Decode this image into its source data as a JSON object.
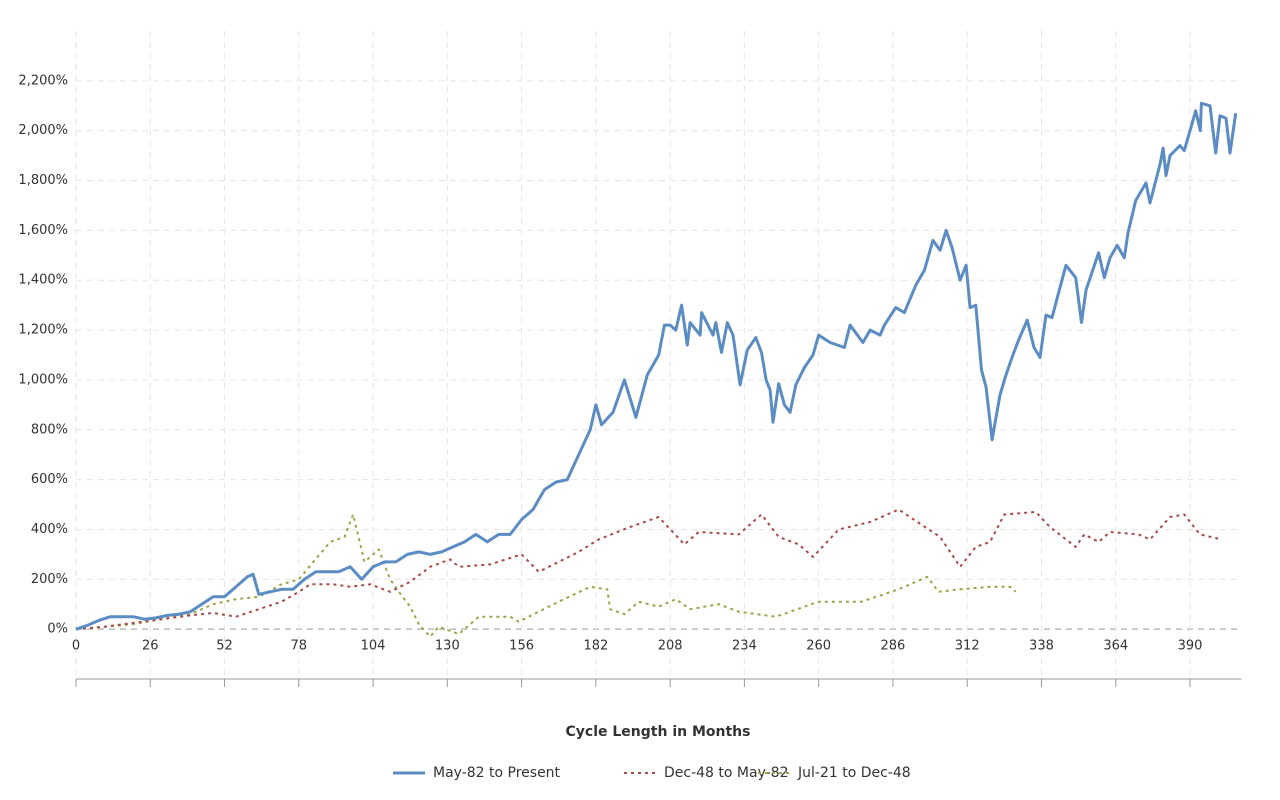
{
  "chart_data": {
    "type": "line",
    "xlabel": "Cycle Length in Months",
    "xlim": [
      0,
      408
    ],
    "ylim": [
      -200,
      2400
    ],
    "xticks": [
      0,
      26,
      52,
      78,
      104,
      130,
      156,
      182,
      208,
      234,
      260,
      286,
      312,
      338,
      364,
      390
    ],
    "yticks": [
      {
        "value": 0,
        "label": "0%"
      },
      {
        "value": 200,
        "label": "200%"
      },
      {
        "value": 400,
        "label": "400%"
      },
      {
        "value": 600,
        "label": "600%"
      },
      {
        "value": 800,
        "label": "800%"
      },
      {
        "value": 1000,
        "label": "1,000%"
      },
      {
        "value": 1200,
        "label": "1,200%"
      },
      {
        "value": 1400,
        "label": "1,400%"
      },
      {
        "value": 1600,
        "label": "1,600%"
      },
      {
        "value": 1800,
        "label": "1,800%"
      },
      {
        "value": 2000,
        "label": "2,000%"
      },
      {
        "value": 2200,
        "label": "2,200%"
      }
    ],
    "grid": true,
    "series": [
      {
        "name": "May-82 to Present",
        "color": "#5b8cc4",
        "dash": "solid",
        "x": [
          0,
          4,
          8,
          12,
          16,
          20,
          24,
          28,
          32,
          36,
          40,
          44,
          48,
          52,
          56,
          60,
          62,
          64,
          68,
          72,
          76,
          80,
          84,
          88,
          92,
          96,
          100,
          104,
          108,
          112,
          116,
          120,
          124,
          128,
          132,
          136,
          140,
          144,
          148,
          152,
          156,
          160,
          164,
          168,
          172,
          176,
          180,
          182,
          184,
          188,
          192,
          196,
          200,
          204,
          206,
          208,
          210,
          212,
          214,
          215,
          218.5,
          219,
          223,
          224,
          226,
          228,
          230,
          232.5,
          235,
          238,
          240,
          241.6,
          243,
          244,
          246,
          248,
          250,
          252,
          255,
          258,
          260,
          264,
          269,
          271,
          275.5,
          278,
          281.5,
          283,
          287,
          290,
          294,
          297,
          300,
          302.5,
          304.6,
          306.7,
          309.5,
          311.6,
          313,
          315,
          317,
          318.6,
          320.7,
          323.5,
          325.6,
          327.7,
          330,
          333,
          335.4,
          337.5,
          339.6,
          341.7,
          344,
          346.6,
          350,
          352,
          353.6,
          358,
          360,
          362,
          364.5,
          367,
          368.3,
          371,
          374.6,
          376,
          379.6,
          380.6,
          381.6,
          383,
          386.5,
          388,
          390,
          392,
          393.6,
          394,
          397,
          399,
          400.5,
          402.6,
          404,
          406
        ],
        "values": [
          0,
          15,
          35,
          50,
          50,
          50,
          40,
          45,
          55,
          60,
          70,
          100,
          130,
          130,
          170,
          210,
          220,
          140,
          150,
          160,
          160,
          200,
          230,
          230,
          230,
          250,
          200,
          250,
          270,
          270,
          300,
          310,
          300,
          310,
          330,
          350,
          380,
          350,
          380,
          380,
          440,
          480,
          560,
          590,
          600,
          700,
          800,
          900,
          820,
          870,
          1000,
          850,
          1020,
          1100,
          1220,
          1220,
          1200,
          1300,
          1140,
          1230,
          1180,
          1270,
          1180,
          1230,
          1110,
          1230,
          1180,
          980,
          1120,
          1170,
          1110,
          1000,
          960,
          830,
          985,
          900,
          870,
          980,
          1050,
          1100,
          1180,
          1150,
          1130,
          1220,
          1150,
          1200,
          1180,
          1220,
          1290,
          1270,
          1380,
          1440,
          1560,
          1520,
          1600,
          1530,
          1400,
          1460,
          1290,
          1300,
          1040,
          970,
          760,
          940,
          1020,
          1090,
          1160,
          1240,
          1130,
          1090,
          1260,
          1250,
          1350,
          1460,
          1410,
          1230,
          1360,
          1510,
          1410,
          1490,
          1540,
          1490,
          1590,
          1720,
          1790,
          1710,
          1870,
          1930,
          1820,
          1900,
          1940,
          1920,
          2000,
          2080,
          2000,
          2110,
          2100,
          1910,
          2060,
          2050,
          1910,
          2070
        ]
      },
      {
        "name": "Dec-48 to May-82",
        "color": "#a84b4b",
        "dash": "3,4",
        "x": [
          0,
          10,
          20,
          30,
          40,
          48,
          56,
          64,
          72,
          78,
          82,
          90,
          96,
          103,
          110,
          117,
          124,
          131,
          134,
          145,
          156,
          162,
          176,
          183,
          194,
          204,
          213,
          218,
          232,
          240,
          246,
          253,
          258,
          267,
          278,
          288,
          302.5,
          309.5,
          315,
          320,
          325,
          336,
          341,
          350,
          353,
          358,
          362,
          372,
          376,
          383,
          388,
          393.5,
          401
        ],
        "values": [
          0,
          10,
          25,
          40,
          55,
          65,
          50,
          80,
          110,
          150,
          180,
          180,
          170,
          180,
          150,
          190,
          250,
          280,
          250,
          260,
          300,
          230,
          310,
          360,
          410,
          450,
          340,
          390,
          380,
          460,
          370,
          340,
          290,
          400,
          430,
          480,
          370,
          250,
          330,
          350,
          460,
          470,
          410,
          330,
          380,
          350,
          390,
          380,
          360,
          450,
          460,
          380,
          360
        ]
      },
      {
        "name": "Jul-21 to Dec-48",
        "color": "#9aa64a",
        "dash": "3,4",
        "x": [
          0,
          20,
          30,
          40,
          48,
          56,
          64,
          72,
          78,
          89,
          94,
          97,
          101,
          106,
          110,
          113,
          117,
          120,
          124,
          127,
          134,
          141,
          152,
          155,
          169,
          180,
          186,
          187,
          192,
          197,
          204,
          210,
          215,
          225,
          232,
          245,
          260,
          275,
          288,
          298,
          302,
          309.5,
          320,
          327,
          329
        ],
        "values": [
          0,
          20,
          40,
          60,
          100,
          120,
          130,
          180,
          200,
          350,
          370,
          460,
          270,
          320,
          200,
          150,
          90,
          20,
          -30,
          10,
          -20,
          50,
          50,
          30,
          110,
          170,
          160,
          80,
          60,
          110,
          90,
          120,
          80,
          100,
          70,
          50,
          110,
          110,
          160,
          210,
          150,
          160,
          170,
          170,
          150
        ]
      }
    ]
  }
}
